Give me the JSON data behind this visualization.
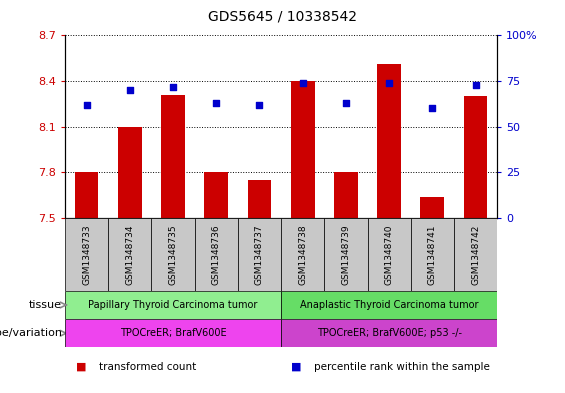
{
  "title": "GDS5645 / 10338542",
  "samples": [
    "GSM1348733",
    "GSM1348734",
    "GSM1348735",
    "GSM1348736",
    "GSM1348737",
    "GSM1348738",
    "GSM1348739",
    "GSM1348740",
    "GSM1348741",
    "GSM1348742"
  ],
  "transformed_count": [
    7.8,
    8.1,
    8.31,
    7.8,
    7.75,
    8.4,
    7.8,
    8.51,
    7.64,
    8.3
  ],
  "percentile_rank": [
    62,
    70,
    72,
    63,
    62,
    74,
    63,
    74,
    60,
    73
  ],
  "ylim_left": [
    7.5,
    8.7
  ],
  "ylim_right": [
    0,
    100
  ],
  "yticks_left": [
    7.5,
    7.8,
    8.1,
    8.4,
    8.7
  ],
  "yticks_right": [
    0,
    25,
    50,
    75,
    100
  ],
  "ytick_labels_left": [
    "7.5",
    "7.8",
    "8.1",
    "8.4",
    "8.7"
  ],
  "ytick_labels_right": [
    "0",
    "25",
    "50",
    "75",
    "100%"
  ],
  "bar_color": "#cc0000",
  "dot_color": "#0000cc",
  "bar_bottom": 7.5,
  "tissue_groups": [
    {
      "label": "Papillary Thyroid Carcinoma tumor",
      "start": 0,
      "end": 5,
      "color": "#90ee90"
    },
    {
      "label": "Anaplastic Thyroid Carcinoma tumor",
      "start": 5,
      "end": 10,
      "color": "#66dd66"
    }
  ],
  "genotype_groups": [
    {
      "label": "TPOCreER; BrafV600E",
      "start": 0,
      "end": 5,
      "color": "#ee44ee"
    },
    {
      "label": "TPOCreER; BrafV600E; p53 -/-",
      "start": 5,
      "end": 10,
      "color": "#cc44cc"
    }
  ],
  "tissue_label": "tissue",
  "genotype_label": "genotype/variation",
  "legend_items": [
    {
      "color": "#cc0000",
      "label": "transformed count"
    },
    {
      "color": "#0000cc",
      "label": "percentile rank within the sample"
    }
  ],
  "tick_label_color_left": "#cc0000",
  "tick_label_color_right": "#0000cc",
  "sample_box_color": "#c8c8c8"
}
